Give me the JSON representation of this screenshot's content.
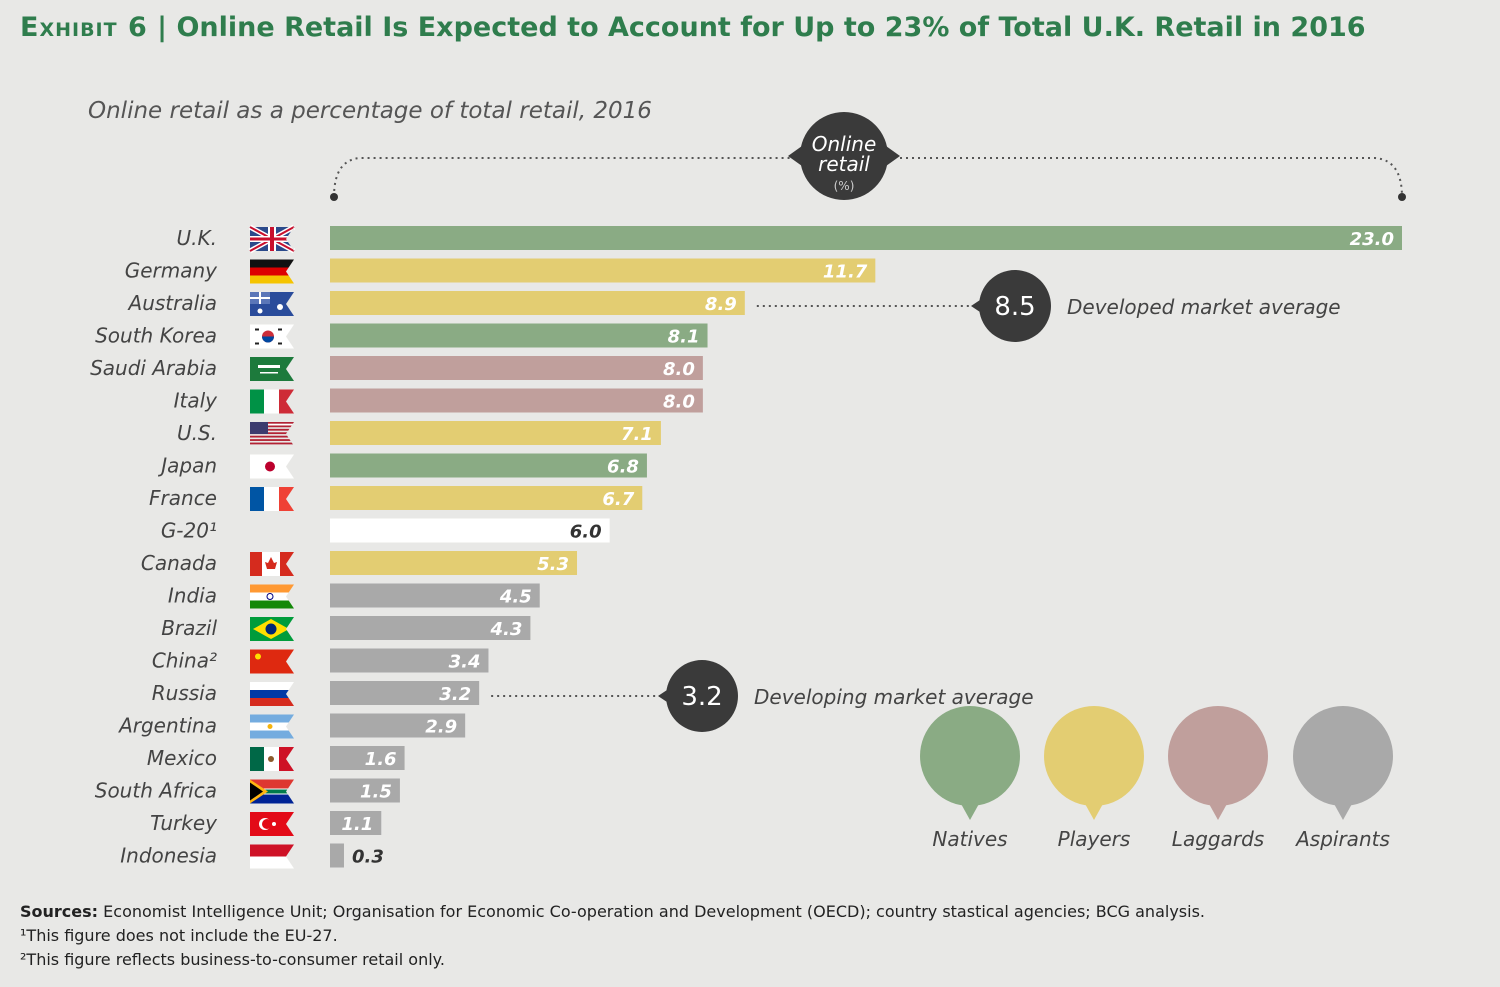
{
  "title_prefix": "Exhibit 6",
  "title_separator": "|",
  "title_main": "Online Retail Is Expected to Account for Up to 23% of Total U.K. Retail in 2016",
  "subtitle": "Online retail as a percentage of total retail, 2016",
  "bracket_label": [
    "Online",
    "retail",
    "(%)"
  ],
  "colors": {
    "Natives": "#8aab84",
    "Players": "#e3cd72",
    "Laggards": "#c09f9c",
    "Aspirants": "#a9a9a9",
    "G20": "#ffffff",
    "title": "#2f7d4d",
    "callout": "#3a3a3a"
  },
  "chart_data": {
    "type": "bar",
    "orientation": "horizontal",
    "xlim": [
      0,
      23
    ],
    "categories": [
      "U.K.",
      "Germany",
      "Australia",
      "South Korea",
      "Saudi Arabia",
      "Italy",
      "U.S.",
      "Japan",
      "France",
      "G-20¹",
      "Canada",
      "India",
      "Brazil",
      "China²",
      "Russia",
      "Argentina",
      "Mexico",
      "South Africa",
      "Turkey",
      "Indonesia"
    ],
    "values": [
      23.0,
      11.7,
      8.9,
      8.1,
      8.0,
      8.0,
      7.1,
      6.8,
      6.7,
      6.0,
      5.3,
      4.5,
      4.3,
      3.4,
      3.2,
      2.9,
      1.6,
      1.5,
      1.1,
      0.3
    ],
    "value_labels": [
      "23.0",
      "11.7",
      "8.9",
      "8.1",
      "8.0",
      "8.0",
      "7.1",
      "6.8",
      "6.7",
      "6.0",
      "5.3",
      "4.5",
      "4.3",
      "3.4",
      "3.2",
      "2.9",
      "1.6",
      "1.5",
      "1.1",
      "0.3"
    ],
    "groups": [
      "Natives",
      "Players",
      "Players",
      "Natives",
      "Laggards",
      "Laggards",
      "Players",
      "Natives",
      "Players",
      "G20",
      "Players",
      "Aspirants",
      "Aspirants",
      "Aspirants",
      "Aspirants",
      "Aspirants",
      "Aspirants",
      "Aspirants",
      "Aspirants",
      "Aspirants"
    ],
    "legend": [
      "Natives",
      "Players",
      "Laggards",
      "Aspirants"
    ],
    "legend_position": "bottom-right",
    "annotations": [
      {
        "value": "8.5",
        "label": "Developed market average",
        "row": 2
      },
      {
        "value": "3.2",
        "label": "Developing market average",
        "row": 14
      }
    ]
  },
  "flags": [
    "uk",
    "germany",
    "australia",
    "south-korea",
    "saudi-arabia",
    "italy",
    "us",
    "japan",
    "france",
    "",
    "canada",
    "india",
    "brazil",
    "china",
    "russia",
    "argentina",
    "mexico",
    "south-africa",
    "turkey",
    "indonesia"
  ],
  "sources": {
    "label": "Sources:",
    "text": "Economist Intelligence Unit; Organisation for Economic Co-operation and Development (OECD); country stastical agencies; BCG analysis.",
    "note1": "¹This figure does not include the EU-27.",
    "note2": "²This figure reflects business-to-consumer retail only."
  }
}
